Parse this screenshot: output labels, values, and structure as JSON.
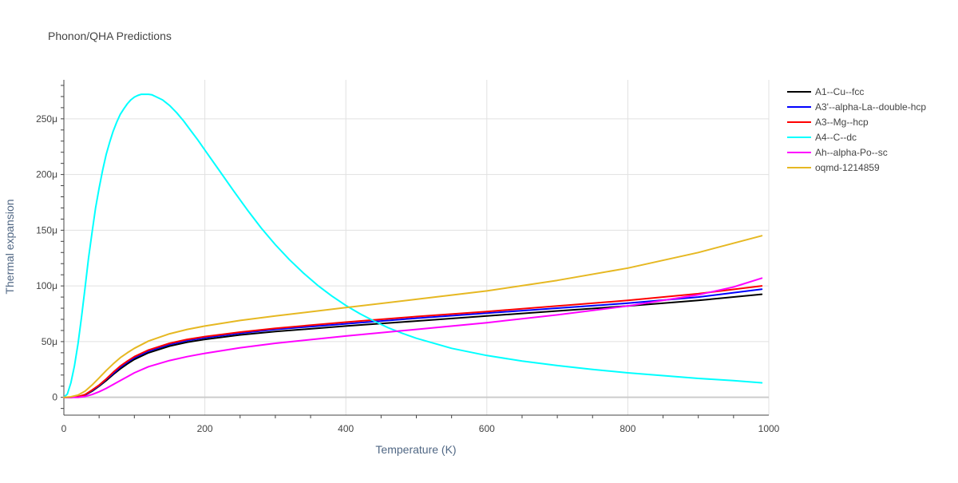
{
  "chart_data": {
    "type": "line",
    "title": "Phonon/QHA Predictions",
    "xlabel": "Temperature (K)",
    "ylabel": "Thermal expansion",
    "xlim": [
      0,
      1000
    ],
    "ylim": [
      -1.6e-05,
      0.000285
    ],
    "x_ticks": [
      {
        "value": 0,
        "label": "0"
      },
      {
        "value": 200,
        "label": "200"
      },
      {
        "value": 400,
        "label": "400"
      },
      {
        "value": 600,
        "label": "600"
      },
      {
        "value": 800,
        "label": "800"
      },
      {
        "value": 1000,
        "label": "1000"
      }
    ],
    "y_ticks": [
      {
        "value": 0,
        "label": "0"
      },
      {
        "value": 5e-05,
        "label": "50μ"
      },
      {
        "value": 0.0001,
        "label": "100μ"
      },
      {
        "value": 0.00015,
        "label": "150μ"
      },
      {
        "value": 0.0002,
        "label": "200μ"
      },
      {
        "value": 0.00025,
        "label": "250μ"
      }
    ],
    "grid": true,
    "legend_position": "right",
    "series": [
      {
        "name": "A1--Cu--fcc",
        "color": "#000000",
        "x": [
          0,
          10,
          20,
          30,
          40,
          50,
          60,
          70,
          80,
          90,
          100,
          120,
          150,
          175,
          200,
          250,
          300,
          400,
          500,
          600,
          700,
          800,
          900,
          990
        ],
        "y": [
          0,
          0,
          5e-07,
          2e-06,
          5.5e-06,
          1e-05,
          1.5e-05,
          2.05e-05,
          2.55e-05,
          3e-05,
          3.4e-05,
          4e-05,
          4.6e-05,
          4.95e-05,
          5.2e-05,
          5.6e-05,
          5.9e-05,
          6.4e-05,
          6.85e-05,
          7.3e-05,
          7.75e-05,
          8.2e-05,
          8.7e-05,
          9.25e-05
        ]
      },
      {
        "name": "A3'--alpha-La--double-hcp",
        "color": "#0000ff",
        "x": [
          0,
          10,
          20,
          30,
          40,
          50,
          60,
          70,
          80,
          90,
          100,
          120,
          150,
          175,
          200,
          250,
          300,
          400,
          500,
          600,
          700,
          800,
          900,
          990
        ],
        "y": [
          0,
          0,
          5e-07,
          2.2e-06,
          6e-06,
          1.05e-05,
          1.6e-05,
          2.15e-05,
          2.7e-05,
          3.15e-05,
          3.55e-05,
          4.15e-05,
          4.75e-05,
          5.1e-05,
          5.35e-05,
          5.75e-05,
          6.1e-05,
          6.6e-05,
          7.1e-05,
          7.55e-05,
          8e-05,
          8.45e-05,
          9e-05,
          9.7e-05
        ]
      },
      {
        "name": "A3--Mg--hcp",
        "color": "#ff0000",
        "x": [
          0,
          10,
          20,
          30,
          40,
          50,
          60,
          70,
          80,
          90,
          100,
          120,
          150,
          175,
          200,
          250,
          300,
          400,
          500,
          600,
          700,
          800,
          900,
          990
        ],
        "y": [
          0,
          0,
          5e-07,
          2.5e-06,
          6.5e-06,
          1.1e-05,
          1.65e-05,
          2.25e-05,
          2.8e-05,
          3.25e-05,
          3.65e-05,
          4.25e-05,
          4.85e-05,
          5.2e-05,
          5.45e-05,
          5.85e-05,
          6.2e-05,
          6.75e-05,
          7.25e-05,
          7.7e-05,
          8.2e-05,
          8.7e-05,
          9.3e-05,
          0.0001
        ]
      },
      {
        "name": "A4--C--dc",
        "color": "#00ffff",
        "x": [
          0,
          5,
          10,
          15,
          20,
          25,
          30,
          35,
          40,
          45,
          50,
          55,
          60,
          65,
          70,
          75,
          80,
          85,
          90,
          95,
          100,
          105,
          110,
          115,
          120,
          125,
          130,
          140,
          150,
          160,
          170,
          180,
          190,
          200,
          220,
          240,
          260,
          280,
          300,
          320,
          340,
          360,
          380,
          400,
          420,
          440,
          460,
          480,
          500,
          550,
          600,
          650,
          700,
          750,
          800,
          850,
          900,
          950,
          990
        ],
        "y": [
          0,
          3e-06,
          1.3e-05,
          2.8e-05,
          4.8e-05,
          7.2e-05,
          9.8e-05,
          0.000125,
          0.000148,
          0.00017,
          0.000188,
          0.000204,
          0.000218,
          0.000229,
          0.000239,
          0.000247,
          0.000254,
          0.000259,
          0.0002635,
          0.000267,
          0.0002695,
          0.000271,
          0.000272,
          0.000272,
          0.000272,
          0.0002715,
          0.00027,
          0.000267,
          0.000262,
          0.0002555,
          0.000248,
          0.0002395,
          0.000231,
          0.000222,
          0.000204,
          0.000186,
          0.0001685,
          0.000152,
          0.000137,
          0.0001235,
          0.0001115,
          0.0001005,
          9.1e-05,
          8.25e-05,
          7.5e-05,
          6.85e-05,
          6.25e-05,
          5.75e-05,
          5.3e-05,
          4.4e-05,
          3.75e-05,
          3.25e-05,
          2.85e-05,
          2.5e-05,
          2.2e-05,
          1.95e-05,
          1.7e-05,
          1.5e-05,
          1.3e-05
        ]
      },
      {
        "name": "Ah--alpha-Po--sc",
        "color": "#ff00ff",
        "x": [
          0,
          10,
          20,
          30,
          40,
          50,
          60,
          70,
          80,
          90,
          100,
          120,
          150,
          175,
          200,
          250,
          300,
          400,
          500,
          600,
          700,
          800,
          850,
          900,
          950,
          990
        ],
        "y": [
          0,
          0,
          0,
          8e-07,
          2.5e-06,
          5e-06,
          8e-06,
          1.15e-05,
          1.5e-05,
          1.85e-05,
          2.2e-05,
          2.75e-05,
          3.3e-05,
          3.65e-05,
          3.95e-05,
          4.45e-05,
          4.85e-05,
          5.5e-05,
          6.1e-05,
          6.7e-05,
          7.4e-05,
          8.2e-05,
          8.7e-05,
          9.2e-05,
          9.9e-05,
          0.000107
        ]
      },
      {
        "name": "oqmd-1214859",
        "color": "#e6b822",
        "x": [
          0,
          10,
          20,
          30,
          40,
          50,
          60,
          70,
          80,
          90,
          100,
          120,
          150,
          175,
          200,
          250,
          300,
          400,
          500,
          600,
          700,
          800,
          900,
          990
        ],
        "y": [
          0,
          5e-07,
          2e-06,
          5.5e-06,
          1.1e-05,
          1.75e-05,
          2.4e-05,
          3e-05,
          3.55e-05,
          4e-05,
          4.4e-05,
          5.05e-05,
          5.7e-05,
          6.1e-05,
          6.4e-05,
          6.9e-05,
          7.3e-05,
          8.05e-05,
          8.8e-05,
          9.55e-05,
          0.000105,
          0.000116,
          0.00013,
          0.000145
        ]
      }
    ]
  }
}
